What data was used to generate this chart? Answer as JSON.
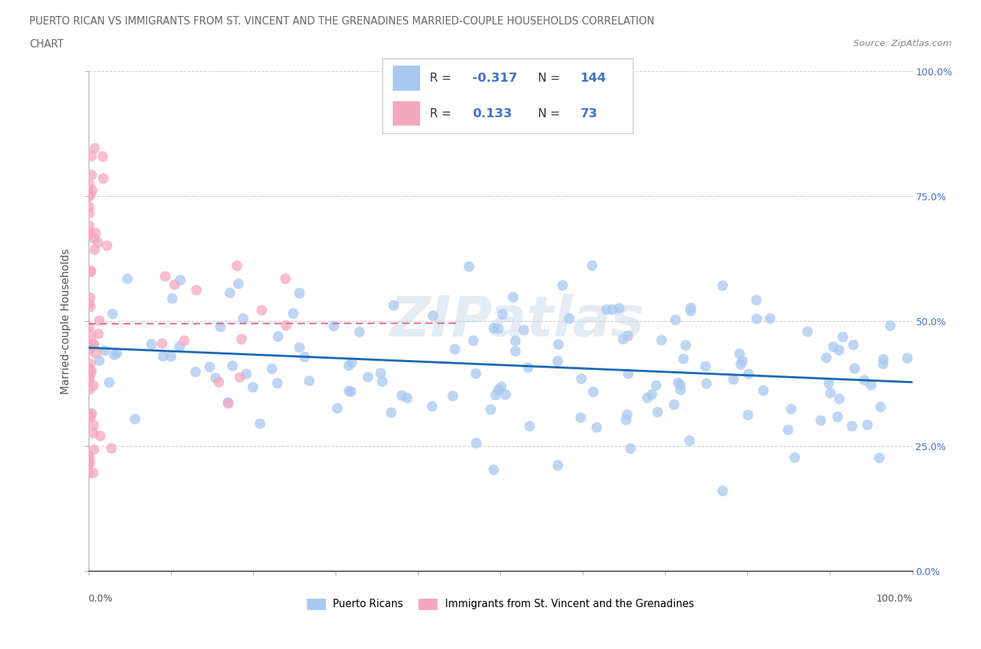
{
  "title_line1": "PUERTO RICAN VS IMMIGRANTS FROM ST. VINCENT AND THE GRENADINES MARRIED-COUPLE HOUSEHOLDS CORRELATION",
  "title_line2": "CHART",
  "source_text": "Source: ZipAtlas.com",
  "ylabel": "Married-couple Households",
  "blue_R": -0.317,
  "blue_N": 144,
  "pink_R": 0.133,
  "pink_N": 73,
  "blue_color": "#a8c8f0",
  "pink_color": "#f4a8c0",
  "blue_line_color": "#1a6ab5",
  "pink_line_color": "#e06888",
  "ylim": [
    0,
    100
  ],
  "xlim": [
    0,
    100
  ],
  "blue_scatter_seed": 12345,
  "pink_scatter_seed": 67890
}
